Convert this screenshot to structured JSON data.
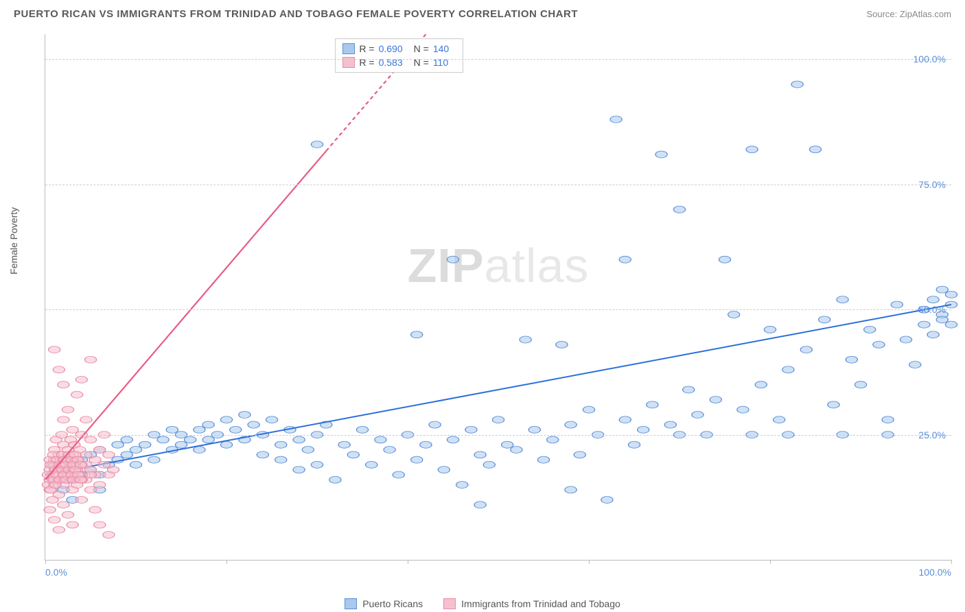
{
  "header": {
    "title": "PUERTO RICAN VS IMMIGRANTS FROM TRINIDAD AND TOBAGO FEMALE POVERTY CORRELATION CHART",
    "source_prefix": "Source: ",
    "source_name": "ZipAtlas.com"
  },
  "chart": {
    "type": "scatter",
    "ylabel": "Female Poverty",
    "xlim": [
      0,
      100
    ],
    "ylim": [
      0,
      105
    ],
    "yticks": [
      25,
      50,
      75,
      100
    ],
    "ytick_labels": [
      "25.0%",
      "50.0%",
      "75.0%",
      "100.0%"
    ],
    "xticks": [
      0,
      20,
      40,
      60,
      80,
      100
    ],
    "x_start_label": "0.0%",
    "x_end_label": "100.0%",
    "grid_color": "#cccccc",
    "axis_color": "#bbbbbb",
    "background_color": "#ffffff",
    "marker_radius": 6.5,
    "marker_opacity": 0.55,
    "series": [
      {
        "name": "Puerto Ricans",
        "color_fill": "#a8c8ec",
        "color_stroke": "#5b8fd6",
        "line_color": "#2a6fd6",
        "line_width": 2.5,
        "R": "0.690",
        "N": "140",
        "line": {
          "x1": 0,
          "y1": 17,
          "x2": 100,
          "y2": 51
        },
        "points": [
          [
            1,
            16
          ],
          [
            2,
            18
          ],
          [
            2,
            14
          ],
          [
            3,
            19
          ],
          [
            3,
            16
          ],
          [
            4,
            17
          ],
          [
            4,
            20
          ],
          [
            5,
            18
          ],
          [
            5,
            21
          ],
          [
            6,
            17
          ],
          [
            6,
            22
          ],
          [
            7,
            19
          ],
          [
            8,
            23
          ],
          [
            8,
            20
          ],
          [
            9,
            21
          ],
          [
            9,
            24
          ],
          [
            10,
            22
          ],
          [
            10,
            19
          ],
          [
            11,
            23
          ],
          [
            12,
            25
          ],
          [
            12,
            20
          ],
          [
            13,
            24
          ],
          [
            14,
            22
          ],
          [
            14,
            26
          ],
          [
            15,
            23
          ],
          [
            15,
            25
          ],
          [
            16,
            24
          ],
          [
            17,
            26
          ],
          [
            17,
            22
          ],
          [
            18,
            27
          ],
          [
            18,
            24
          ],
          [
            19,
            25
          ],
          [
            20,
            23
          ],
          [
            20,
            28
          ],
          [
            21,
            26
          ],
          [
            22,
            24
          ],
          [
            22,
            29
          ],
          [
            23,
            27
          ],
          [
            24,
            25
          ],
          [
            24,
            21
          ],
          [
            25,
            28
          ],
          [
            26,
            23
          ],
          [
            26,
            20
          ],
          [
            27,
            26
          ],
          [
            28,
            24
          ],
          [
            28,
            18
          ],
          [
            29,
            22
          ],
          [
            30,
            25
          ],
          [
            30,
            19
          ],
          [
            31,
            27
          ],
          [
            32,
            16
          ],
          [
            33,
            23
          ],
          [
            34,
            21
          ],
          [
            35,
            26
          ],
          [
            36,
            19
          ],
          [
            37,
            24
          ],
          [
            38,
            22
          ],
          [
            39,
            17
          ],
          [
            40,
            25
          ],
          [
            41,
            20
          ],
          [
            42,
            23
          ],
          [
            43,
            27
          ],
          [
            44,
            18
          ],
          [
            45,
            24
          ],
          [
            46,
            15
          ],
          [
            47,
            26
          ],
          [
            48,
            21
          ],
          [
            49,
            19
          ],
          [
            50,
            28
          ],
          [
            51,
            23
          ],
          [
            45,
            60
          ],
          [
            52,
            22
          ],
          [
            53,
            44
          ],
          [
            54,
            26
          ],
          [
            55,
            20
          ],
          [
            56,
            24
          ],
          [
            57,
            43
          ],
          [
            58,
            27
          ],
          [
            59,
            21
          ],
          [
            60,
            30
          ],
          [
            61,
            25
          ],
          [
            62,
            12
          ],
          [
            63,
            88
          ],
          [
            64,
            28
          ],
          [
            65,
            23
          ],
          [
            66,
            26
          ],
          [
            67,
            31
          ],
          [
            68,
            81
          ],
          [
            69,
            27
          ],
          [
            70,
            70
          ],
          [
            71,
            34
          ],
          [
            72,
            29
          ],
          [
            73,
            25
          ],
          [
            74,
            32
          ],
          [
            75,
            60
          ],
          [
            76,
            49
          ],
          [
            77,
            30
          ],
          [
            78,
            82
          ],
          [
            79,
            35
          ],
          [
            80,
            46
          ],
          [
            81,
            28
          ],
          [
            82,
            38
          ],
          [
            83,
            95
          ],
          [
            84,
            42
          ],
          [
            85,
            82
          ],
          [
            86,
            48
          ],
          [
            87,
            31
          ],
          [
            88,
            52
          ],
          [
            89,
            40
          ],
          [
            90,
            35
          ],
          [
            91,
            46
          ],
          [
            92,
            43
          ],
          [
            93,
            28
          ],
          [
            94,
            51
          ],
          [
            95,
            44
          ],
          [
            96,
            39
          ],
          [
            97,
            50
          ],
          [
            97,
            47
          ],
          [
            98,
            45
          ],
          [
            98,
            52
          ],
          [
            99,
            49
          ],
          [
            99,
            54
          ],
          [
            99,
            48
          ],
          [
            100,
            51
          ],
          [
            100,
            47
          ],
          [
            100,
            53
          ],
          [
            88,
            25
          ],
          [
            78,
            25
          ],
          [
            82,
            25
          ],
          [
            93,
            25
          ],
          [
            70,
            25
          ],
          [
            64,
            60
          ],
          [
            58,
            14
          ],
          [
            48,
            11
          ],
          [
            41,
            45
          ],
          [
            30,
            83
          ],
          [
            6,
            14
          ],
          [
            3,
            12
          ],
          [
            2,
            20
          ],
          [
            1,
            19
          ]
        ]
      },
      {
        "name": "Immigrants from Trinidad and Tobago",
        "color_fill": "#f5c0ce",
        "color_stroke": "#e98ba5",
        "line_color": "#e85d85",
        "line_width": 2,
        "R": "0.583",
        "N": "110",
        "line": {
          "x1": 0,
          "y1": 16,
          "x2": 42,
          "y2": 105,
          "solid_until_x": 31
        },
        "points": [
          [
            0.5,
            16
          ],
          [
            0.5,
            18
          ],
          [
            0.5,
            14
          ],
          [
            0.8,
            19
          ],
          [
            0.8,
            17
          ],
          [
            1,
            20
          ],
          [
            1,
            15
          ],
          [
            1,
            22
          ],
          [
            1.2,
            18
          ],
          [
            1.2,
            24
          ],
          [
            1.5,
            16
          ],
          [
            1.5,
            21
          ],
          [
            1.5,
            13
          ],
          [
            1.8,
            19
          ],
          [
            1.8,
            25
          ],
          [
            2,
            17
          ],
          [
            2,
            23
          ],
          [
            2,
            15
          ],
          [
            2,
            28
          ],
          [
            2.2,
            20
          ],
          [
            2.2,
            18
          ],
          [
            2.5,
            22
          ],
          [
            2.5,
            16
          ],
          [
            2.5,
            30
          ],
          [
            2.8,
            19
          ],
          [
            2.8,
            24
          ],
          [
            3,
            17
          ],
          [
            3,
            21
          ],
          [
            3,
            26
          ],
          [
            3,
            14
          ],
          [
            3.2,
            23
          ],
          [
            3.2,
            18
          ],
          [
            3.5,
            20
          ],
          [
            3.5,
            33
          ],
          [
            3.5,
            15
          ],
          [
            3.8,
            22
          ],
          [
            3.8,
            17
          ],
          [
            4,
            25
          ],
          [
            4,
            19
          ],
          [
            4,
            12
          ],
          [
            4,
            36
          ],
          [
            4.5,
            21
          ],
          [
            4.5,
            16
          ],
          [
            4.5,
            28
          ],
          [
            5,
            18
          ],
          [
            5,
            24
          ],
          [
            5,
            14
          ],
          [
            5,
            40
          ],
          [
            5.5,
            20
          ],
          [
            5.5,
            17
          ],
          [
            5.5,
            10
          ],
          [
            6,
            22
          ],
          [
            6,
            15
          ],
          [
            6,
            7
          ],
          [
            6.5,
            19
          ],
          [
            6.5,
            25
          ],
          [
            7,
            17
          ],
          [
            7,
            5
          ],
          [
            7,
            21
          ],
          [
            7.5,
            18
          ],
          [
            1,
            42
          ],
          [
            1.5,
            38
          ],
          [
            2,
            35
          ],
          [
            0.5,
            10
          ],
          [
            1,
            8
          ],
          [
            1.5,
            6
          ],
          [
            2,
            11
          ],
          [
            2.5,
            9
          ],
          [
            3,
            7
          ],
          [
            0.8,
            12
          ],
          [
            0.5,
            20
          ],
          [
            1,
            16
          ],
          [
            1.5,
            18
          ],
          [
            2,
            19
          ],
          [
            2.5,
            17
          ],
          [
            3,
            20
          ],
          [
            3.5,
            18
          ],
          [
            4,
            16
          ],
          [
            4.5,
            19
          ],
          [
            5,
            17
          ],
          [
            0.3,
            15
          ],
          [
            0.3,
            17
          ],
          [
            0.6,
            14
          ],
          [
            0.6,
            19
          ],
          [
            0.9,
            16
          ],
          [
            0.9,
            21
          ],
          [
            1.1,
            18
          ],
          [
            1.1,
            15
          ],
          [
            1.3,
            20
          ],
          [
            1.3,
            17
          ],
          [
            1.6,
            19
          ],
          [
            1.6,
            16
          ],
          [
            1.9,
            18
          ],
          [
            1.9,
            21
          ],
          [
            2.1,
            17
          ],
          [
            2.1,
            20
          ],
          [
            2.3,
            19
          ],
          [
            2.3,
            16
          ],
          [
            2.6,
            18
          ],
          [
            2.6,
            21
          ],
          [
            2.9,
            17
          ],
          [
            2.9,
            20
          ],
          [
            3.1,
            19
          ],
          [
            3.1,
            16
          ],
          [
            3.3,
            18
          ],
          [
            3.3,
            21
          ],
          [
            3.6,
            17
          ],
          [
            3.6,
            20
          ],
          [
            3.9,
            19
          ],
          [
            3.9,
            16
          ]
        ]
      }
    ]
  },
  "watermark": {
    "zip": "ZIP",
    "atlas": "atlas"
  },
  "legend_bottom": [
    {
      "label": "Puerto Ricans",
      "fill": "#a8c8ec",
      "stroke": "#5b8fd6"
    },
    {
      "label": "Immigrants from Trinidad and Tobago",
      "fill": "#f5c0ce",
      "stroke": "#e98ba5"
    }
  ]
}
